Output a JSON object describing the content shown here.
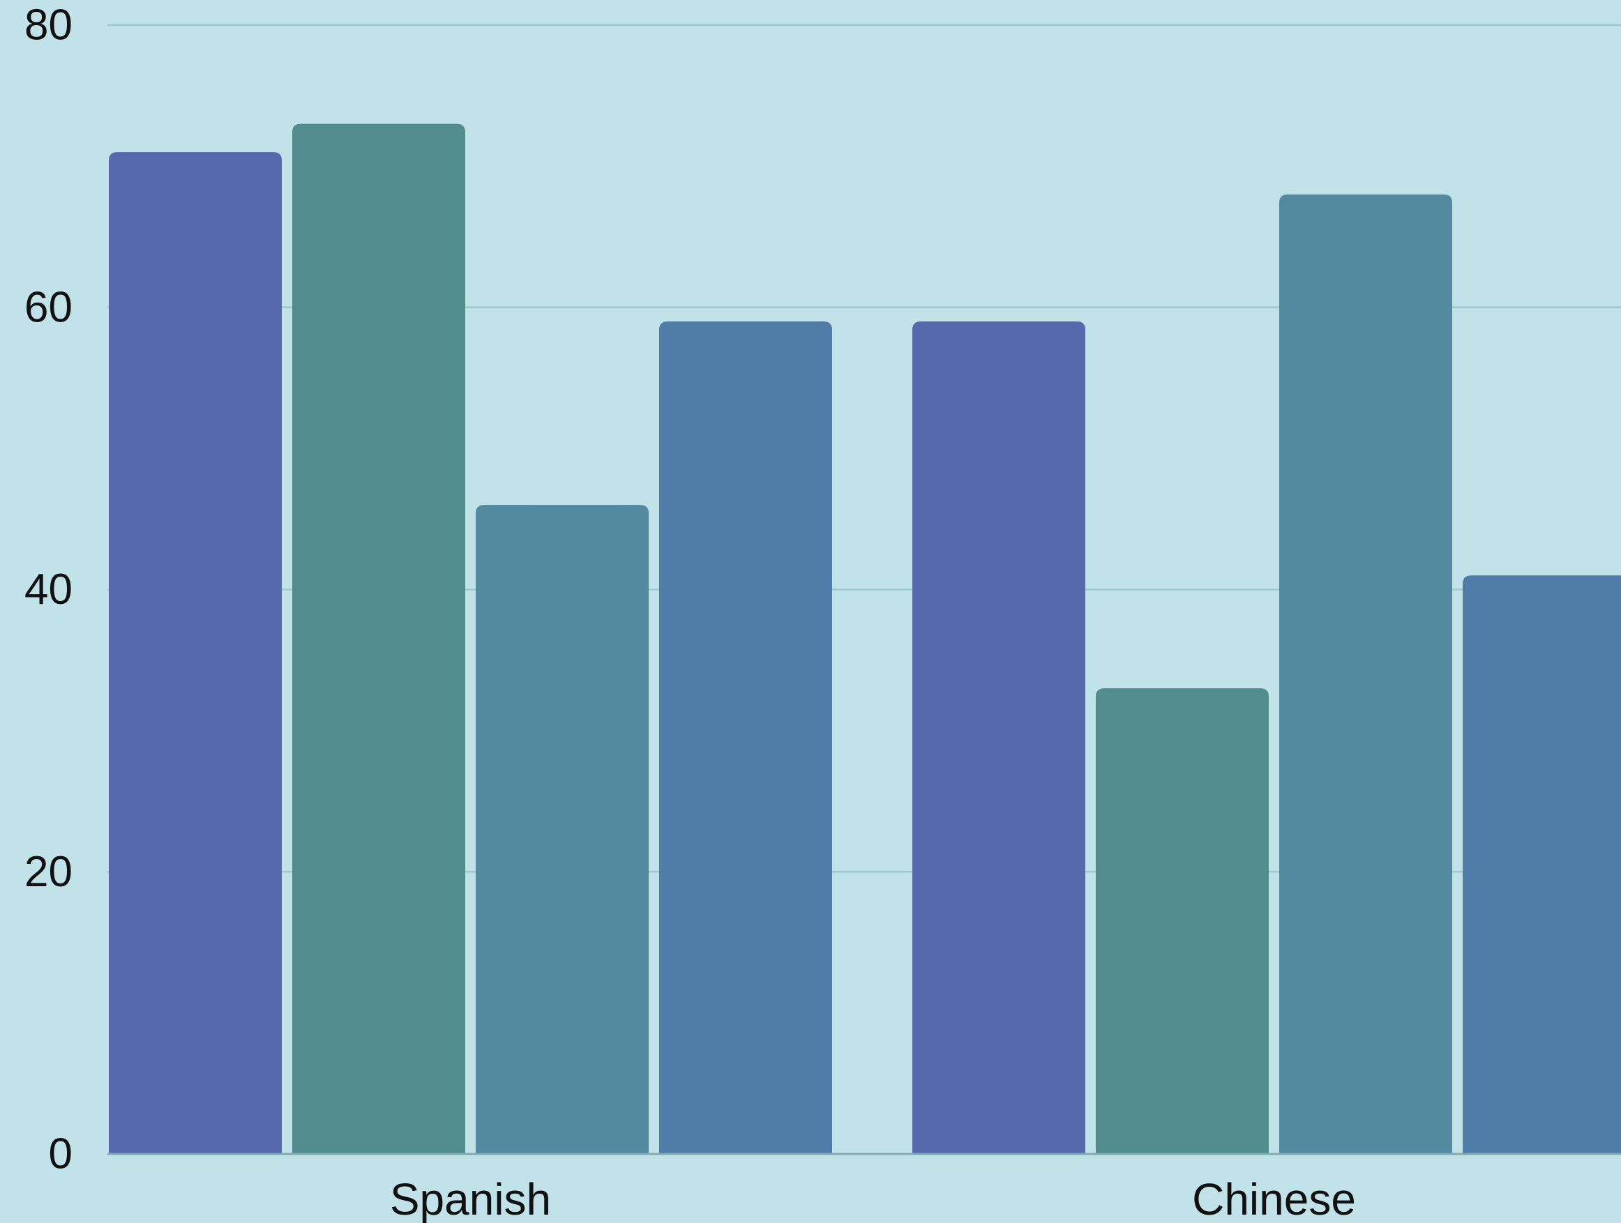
{
  "chart_data": {
    "type": "bar",
    "categories": [
      "Spanish",
      "Chinese"
    ],
    "series": [
      {
        "values": [
          71,
          59
        ],
        "color": "#5769ae"
      },
      {
        "values": [
          73,
          33
        ],
        "color": "#518c8e"
      },
      {
        "values": [
          46,
          68
        ],
        "color": "#538aa0"
      },
      {
        "values": [
          59,
          41
        ],
        "color": "#507ca9"
      }
    ],
    "yticks": [
      "0",
      "20",
      "40",
      "60",
      "80"
    ],
    "ylim": [
      0,
      80
    ],
    "grid": true,
    "title": "",
    "xlabel": "",
    "ylabel": ""
  },
  "colors": {
    "background": "#c1e2e9",
    "gridline": "#9fc7cf",
    "text": "#111111"
  }
}
